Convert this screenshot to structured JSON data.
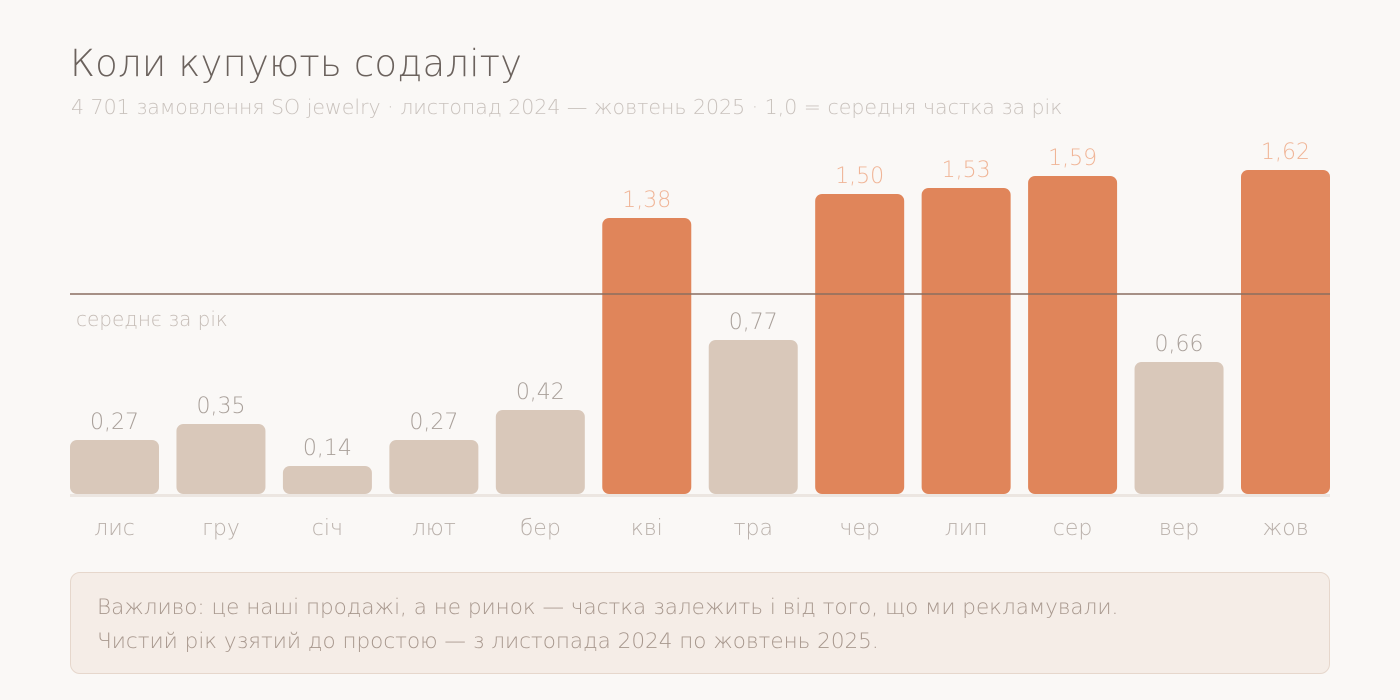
{
  "header": {
    "title": "Коли купують содаліту",
    "subtitle": "4 701 замовлення SO jewelry · листопад 2024 — жовтень 2025 · 1,0 = середня частка за рік"
  },
  "chart_data": {
    "type": "bar",
    "categories": [
      "лис",
      "гру",
      "січ",
      "лют",
      "бер",
      "кві",
      "тра",
      "чер",
      "лип",
      "сер",
      "вер",
      "жов"
    ],
    "values": [
      0.27,
      0.35,
      0.14,
      0.27,
      0.42,
      1.38,
      0.77,
      1.5,
      1.53,
      1.59,
      0.66,
      1.62
    ],
    "value_labels": [
      "0,27",
      "0,35",
      "0,14",
      "0,27",
      "0,42",
      "1,38",
      "0,77",
      "1,50",
      "1,53",
      "1,59",
      "0,66",
      "1,62"
    ],
    "reference_line": {
      "value": 1.0,
      "label": "середнє за рік"
    },
    "ylim": [
      0,
      1.7
    ],
    "grid": false,
    "colors": {
      "above_average": "#e0855a",
      "below_average": "#d9c8ba",
      "label_above": "#f0b597",
      "label_below": "#a9a09a",
      "reference_line": "#8a6e60"
    }
  },
  "note": {
    "line1": "Важливо: це наші продажі, а не ринок — частка залежить і від того, що ми рекламували.",
    "line2": "Чистий рік узятий до простою — з листопада 2024 по жовтень 2025."
  }
}
